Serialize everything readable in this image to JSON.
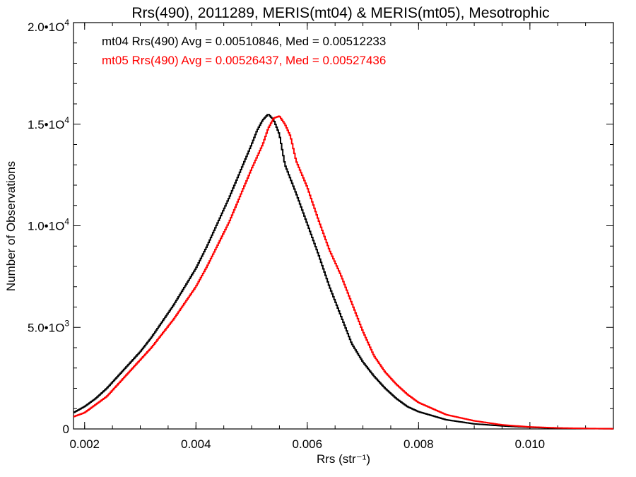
{
  "chart_data": {
    "type": "line",
    "style": "step histogram",
    "title": "Rrs(490), 2011289, MERIS(mt04) & MERIS(mt05), Mesotrophic",
    "xlabel": "Rrs (str⁻¹)",
    "ylabel": "Number of Observations",
    "xlim": [
      0.0018,
      0.0115
    ],
    "ylim": [
      0,
      20000
    ],
    "x_ticks": [
      {
        "value": 0.002,
        "label": "0.002"
      },
      {
        "value": 0.004,
        "label": "0.004"
      },
      {
        "value": 0.006,
        "label": "0.006"
      },
      {
        "value": 0.008,
        "label": "0.008"
      },
      {
        "value": 0.01,
        "label": "0.010"
      }
    ],
    "y_ticks": [
      {
        "value": 0,
        "base": "0",
        "exp": ""
      },
      {
        "value": 5000,
        "base": "5.0•1O",
        "exp": "3"
      },
      {
        "value": 10000,
        "base": "1.0•1O",
        "exp": "4"
      },
      {
        "value": 15000,
        "base": "1.5•1O",
        "exp": "4"
      },
      {
        "value": 20000,
        "base": "2.0•1O",
        "exp": "4"
      }
    ],
    "series": [
      {
        "name": "mt04",
        "color": "#000000",
        "annotation": "mt04 Rrs(490) Avg = 0.00510846, Med = 0.00512233",
        "points": [
          [
            0.0018,
            800
          ],
          [
            0.002,
            1100
          ],
          [
            0.0022,
            1500
          ],
          [
            0.0024,
            2000
          ],
          [
            0.0026,
            2600
          ],
          [
            0.0028,
            3200
          ],
          [
            0.003,
            3800
          ],
          [
            0.0032,
            4500
          ],
          [
            0.0034,
            5300
          ],
          [
            0.0036,
            6100
          ],
          [
            0.0038,
            7000
          ],
          [
            0.004,
            7900
          ],
          [
            0.0042,
            9000
          ],
          [
            0.0044,
            10200
          ],
          [
            0.0046,
            11400
          ],
          [
            0.0048,
            12700
          ],
          [
            0.005,
            14000
          ],
          [
            0.0051,
            14700
          ],
          [
            0.0052,
            15200
          ],
          [
            0.0053,
            15500
          ],
          [
            0.0054,
            15200
          ],
          [
            0.0055,
            14500
          ],
          [
            0.0056,
            13000
          ],
          [
            0.0058,
            11600
          ],
          [
            0.006,
            10100
          ],
          [
            0.0062,
            8600
          ],
          [
            0.0064,
            7000
          ],
          [
            0.0066,
            5600
          ],
          [
            0.0068,
            4200
          ],
          [
            0.007,
            3300
          ],
          [
            0.0072,
            2600
          ],
          [
            0.0074,
            2000
          ],
          [
            0.0076,
            1500
          ],
          [
            0.0078,
            1100
          ],
          [
            0.008,
            850
          ],
          [
            0.0085,
            450
          ],
          [
            0.009,
            250
          ],
          [
            0.0095,
            150
          ],
          [
            0.01,
            80
          ],
          [
            0.0105,
            40
          ],
          [
            0.011,
            20
          ],
          [
            0.0115,
            10
          ]
        ]
      },
      {
        "name": "mt05",
        "color": "#ff0000",
        "annotation": "mt05 Rrs(490) Avg = 0.00526437, Med = 0.00527436",
        "points": [
          [
            0.0018,
            600
          ],
          [
            0.002,
            800
          ],
          [
            0.0022,
            1200
          ],
          [
            0.0024,
            1600
          ],
          [
            0.0026,
            2200
          ],
          [
            0.0028,
            2800
          ],
          [
            0.003,
            3400
          ],
          [
            0.0032,
            4000
          ],
          [
            0.0034,
            4700
          ],
          [
            0.0036,
            5400
          ],
          [
            0.0038,
            6200
          ],
          [
            0.004,
            7000
          ],
          [
            0.0042,
            8000
          ],
          [
            0.0044,
            9100
          ],
          [
            0.0046,
            10200
          ],
          [
            0.0048,
            11500
          ],
          [
            0.005,
            12800
          ],
          [
            0.0052,
            14000
          ],
          [
            0.0053,
            14800
          ],
          [
            0.0054,
            15300
          ],
          [
            0.0055,
            15400
          ],
          [
            0.0056,
            15000
          ],
          [
            0.0057,
            14400
          ],
          [
            0.0058,
            13200
          ],
          [
            0.006,
            11900
          ],
          [
            0.0062,
            10300
          ],
          [
            0.0064,
            8800
          ],
          [
            0.0066,
            7600
          ],
          [
            0.0068,
            6200
          ],
          [
            0.007,
            4800
          ],
          [
            0.0072,
            3600
          ],
          [
            0.0074,
            2800
          ],
          [
            0.0076,
            2200
          ],
          [
            0.0078,
            1700
          ],
          [
            0.008,
            1300
          ],
          [
            0.0085,
            700
          ],
          [
            0.009,
            400
          ],
          [
            0.0095,
            200
          ],
          [
            0.01,
            100
          ],
          [
            0.0105,
            50
          ],
          [
            0.011,
            25
          ],
          [
            0.0115,
            10
          ]
        ]
      }
    ]
  }
}
